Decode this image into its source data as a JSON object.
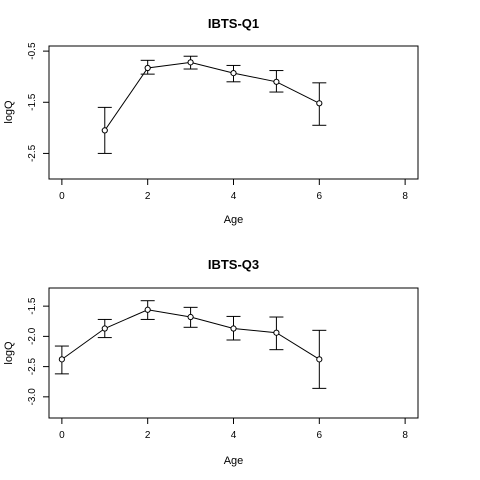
{
  "chart_data": [
    {
      "type": "line",
      "title": "IBTS-Q1",
      "xlabel": "Age",
      "ylabel": "logQ",
      "xlim": [
        -0.3,
        8.3
      ],
      "ylim": [
        -3.0,
        -0.4
      ],
      "xticks": [
        0,
        2,
        4,
        6,
        8
      ],
      "yticks": [
        -0.5,
        -1.5,
        -2.5
      ],
      "ytick_labels": [
        "-0.5",
        "-1.5",
        "-2.5"
      ],
      "x": [
        1,
        2,
        3,
        4,
        5,
        6
      ],
      "y": [
        -2.05,
        -0.83,
        -0.72,
        -0.93,
        -1.1,
        -1.52
      ],
      "lower": [
        -2.5,
        -0.95,
        -0.85,
        -1.1,
        -1.3,
        -1.95
      ],
      "upper": [
        -1.6,
        -0.68,
        -0.6,
        -0.78,
        -0.88,
        -1.12
      ],
      "grid": false
    },
    {
      "type": "line",
      "title": "IBTS-Q3",
      "xlabel": "Age",
      "ylabel": "logQ",
      "xlim": [
        -0.3,
        8.3
      ],
      "ylim": [
        -3.35,
        -1.2
      ],
      "xticks": [
        0,
        2,
        4,
        6,
        8
      ],
      "yticks": [
        -1.5,
        -2.0,
        -2.5,
        -3.0
      ],
      "ytick_labels": [
        "-1.5",
        "-2.0",
        "-2.5",
        "-3.0"
      ],
      "x": [
        0,
        1,
        2,
        3,
        4,
        5,
        6
      ],
      "y": [
        -2.38,
        -1.87,
        -1.56,
        -1.68,
        -1.87,
        -1.94,
        -2.38
      ],
      "lower": [
        -2.62,
        -2.02,
        -1.72,
        -1.85,
        -2.06,
        -2.22,
        -2.86
      ],
      "upper": [
        -2.16,
        -1.72,
        -1.41,
        -1.52,
        -1.67,
        -1.68,
        -1.9
      ],
      "grid": false
    }
  ]
}
